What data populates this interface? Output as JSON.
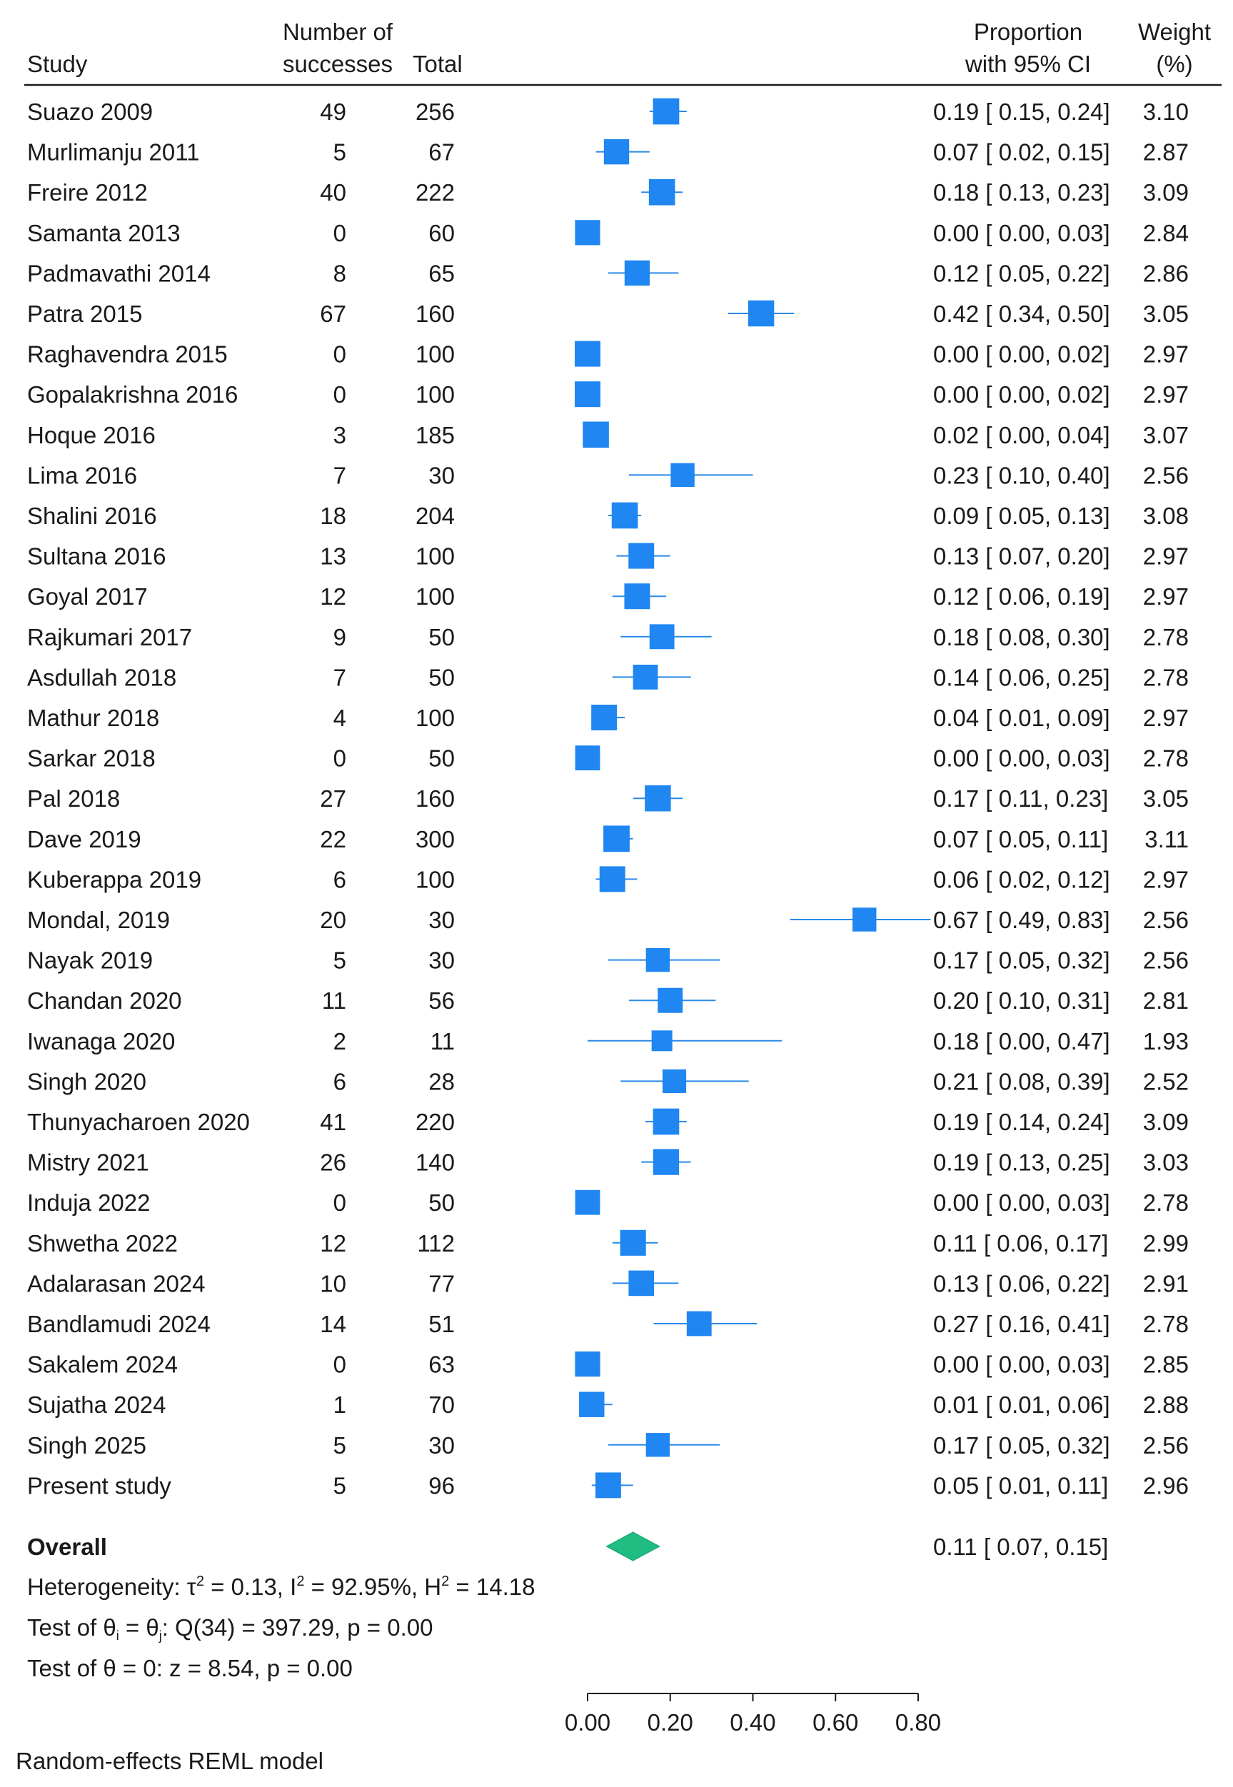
{
  "chart_data": {
    "type": "forest",
    "headers": {
      "study": "Study",
      "successes_line1": "Number of",
      "successes_line2": "successes",
      "total": "Total",
      "ci_line1": "Proportion",
      "ci_line2": "with 95% CI",
      "weight_line1": "Weight",
      "weight_line2": "(%)"
    },
    "studies": [
      {
        "name": "Suazo 2009",
        "successes": "49",
        "total": "256",
        "est": 0.19,
        "lo": 0.15,
        "hi": 0.24,
        "est_text": "0.19",
        "lo_text": "0.15",
        "hi_text": "0.24",
        "weight": 3.1,
        "weight_text": "3.10"
      },
      {
        "name": "Murlimanju 2011",
        "successes": "5",
        "total": "67",
        "est": 0.07,
        "lo": 0.02,
        "hi": 0.15,
        "est_text": "0.07",
        "lo_text": "0.02",
        "hi_text": "0.15",
        "weight": 2.87,
        "weight_text": "2.87"
      },
      {
        "name": "Freire 2012",
        "successes": "40",
        "total": "222",
        "est": 0.18,
        "lo": 0.13,
        "hi": 0.23,
        "est_text": "0.18",
        "lo_text": "0.13",
        "hi_text": "0.23",
        "weight": 3.09,
        "weight_text": "3.09"
      },
      {
        "name": "Samanta 2013",
        "successes": "0",
        "total": "60",
        "est": 0.0,
        "lo": 0.0,
        "hi": 0.03,
        "est_text": "0.00",
        "lo_text": "0.00",
        "hi_text": "0.03",
        "weight": 2.84,
        "weight_text": "2.84"
      },
      {
        "name": "Padmavathi 2014",
        "successes": "8",
        "total": "65",
        "est": 0.12,
        "lo": 0.05,
        "hi": 0.22,
        "est_text": "0.12",
        "lo_text": "0.05",
        "hi_text": "0.22",
        "weight": 2.86,
        "weight_text": "2.86"
      },
      {
        "name": "Patra 2015",
        "successes": "67",
        "total": "160",
        "est": 0.42,
        "lo": 0.34,
        "hi": 0.5,
        "est_text": "0.42",
        "lo_text": "0.34",
        "hi_text": "0.50",
        "weight": 3.05,
        "weight_text": "3.05"
      },
      {
        "name": "Raghavendra 2015",
        "successes": "0",
        "total": "100",
        "est": 0.0,
        "lo": 0.0,
        "hi": 0.02,
        "est_text": "0.00",
        "lo_text": "0.00",
        "hi_text": "0.02",
        "weight": 2.97,
        "weight_text": "2.97"
      },
      {
        "name": "Gopalakrishna 2016",
        "successes": "0",
        "total": "100",
        "est": 0.0,
        "lo": 0.0,
        "hi": 0.02,
        "est_text": "0.00",
        "lo_text": "0.00",
        "hi_text": "0.02",
        "weight": 2.97,
        "weight_text": "2.97"
      },
      {
        "name": "Hoque 2016",
        "successes": "3",
        "total": "185",
        "est": 0.02,
        "lo": 0.0,
        "hi": 0.04,
        "est_text": "0.02",
        "lo_text": "0.00",
        "hi_text": "0.04",
        "weight": 3.07,
        "weight_text": "3.07"
      },
      {
        "name": "Lima 2016",
        "successes": "7",
        "total": "30",
        "est": 0.23,
        "lo": 0.1,
        "hi": 0.4,
        "est_text": "0.23",
        "lo_text": "0.10",
        "hi_text": "0.40",
        "weight": 2.56,
        "weight_text": "2.56"
      },
      {
        "name": "Shalini 2016",
        "successes": "18",
        "total": "204",
        "est": 0.09,
        "lo": 0.05,
        "hi": 0.13,
        "est_text": "0.09",
        "lo_text": "0.05",
        "hi_text": "0.13",
        "weight": 3.08,
        "weight_text": "3.08"
      },
      {
        "name": "Sultana 2016",
        "successes": "13",
        "total": "100",
        "est": 0.13,
        "lo": 0.07,
        "hi": 0.2,
        "est_text": "0.13",
        "lo_text": "0.07",
        "hi_text": "0.20",
        "weight": 2.97,
        "weight_text": "2.97"
      },
      {
        "name": "Goyal 2017",
        "successes": "12",
        "total": "100",
        "est": 0.12,
        "lo": 0.06,
        "hi": 0.19,
        "est_text": "0.12",
        "lo_text": "0.06",
        "hi_text": "0.19",
        "weight": 2.97,
        "weight_text": "2.97"
      },
      {
        "name": "Rajkumari 2017",
        "successes": "9",
        "total": "50",
        "est": 0.18,
        "lo": 0.08,
        "hi": 0.3,
        "est_text": "0.18",
        "lo_text": "0.08",
        "hi_text": "0.30",
        "weight": 2.78,
        "weight_text": "2.78"
      },
      {
        "name": "Asdullah 2018",
        "successes": "7",
        "total": "50",
        "est": 0.14,
        "lo": 0.06,
        "hi": 0.25,
        "est_text": "0.14",
        "lo_text": "0.06",
        "hi_text": "0.25",
        "weight": 2.78,
        "weight_text": "2.78"
      },
      {
        "name": "Mathur 2018",
        "successes": "4",
        "total": "100",
        "est": 0.04,
        "lo": 0.01,
        "hi": 0.09,
        "est_text": "0.04",
        "lo_text": "0.01",
        "hi_text": "0.09",
        "weight": 2.97,
        "weight_text": "2.97"
      },
      {
        "name": "Sarkar 2018",
        "successes": "0",
        "total": "50",
        "est": 0.0,
        "lo": 0.0,
        "hi": 0.03,
        "est_text": "0.00",
        "lo_text": "0.00",
        "hi_text": "0.03",
        "weight": 2.78,
        "weight_text": "2.78"
      },
      {
        "name": "Pal 2018",
        "successes": "27",
        "total": "160",
        "est": 0.17,
        "lo": 0.11,
        "hi": 0.23,
        "est_text": "0.17",
        "lo_text": "0.11",
        "hi_text": "0.23",
        "weight": 3.05,
        "weight_text": "3.05"
      },
      {
        "name": "Dave 2019",
        "successes": "22",
        "total": "300",
        "est": 0.07,
        "lo": 0.05,
        "hi": 0.11,
        "est_text": "0.07",
        "lo_text": "0.05",
        "hi_text": "0.11",
        "weight": 3.11,
        "weight_text": "3.11"
      },
      {
        "name": "Kuberappa 2019",
        "successes": "6",
        "total": "100",
        "est": 0.06,
        "lo": 0.02,
        "hi": 0.12,
        "est_text": "0.06",
        "lo_text": "0.02",
        "hi_text": "0.12",
        "weight": 2.97,
        "weight_text": "2.97"
      },
      {
        "name": "Mondal, 2019",
        "successes": "20",
        "total": "30",
        "est": 0.67,
        "lo": 0.49,
        "hi": 0.83,
        "est_text": "0.67",
        "lo_text": "0.49",
        "hi_text": "0.83",
        "weight": 2.56,
        "weight_text": "2.56"
      },
      {
        "name": "Nayak 2019",
        "successes": "5",
        "total": "30",
        "est": 0.17,
        "lo": 0.05,
        "hi": 0.32,
        "est_text": "0.17",
        "lo_text": "0.05",
        "hi_text": "0.32",
        "weight": 2.56,
        "weight_text": "2.56"
      },
      {
        "name": "Chandan 2020",
        "successes": "11",
        "total": "56",
        "est": 0.2,
        "lo": 0.1,
        "hi": 0.31,
        "est_text": "0.20",
        "lo_text": "0.10",
        "hi_text": "0.31",
        "weight": 2.81,
        "weight_text": "2.81"
      },
      {
        "name": "Iwanaga 2020",
        "successes": "2",
        "total": "11",
        "est": 0.18,
        "lo": 0.0,
        "hi": 0.47,
        "est_text": "0.18",
        "lo_text": "0.00",
        "hi_text": "0.47",
        "weight": 1.93,
        "weight_text": "1.93"
      },
      {
        "name": "Singh 2020",
        "successes": "6",
        "total": "28",
        "est": 0.21,
        "lo": 0.08,
        "hi": 0.39,
        "est_text": "0.21",
        "lo_text": "0.08",
        "hi_text": "0.39",
        "weight": 2.52,
        "weight_text": "2.52"
      },
      {
        "name": "Thunyacharoen 2020",
        "successes": "41",
        "total": "220",
        "est": 0.19,
        "lo": 0.14,
        "hi": 0.24,
        "est_text": "0.19",
        "lo_text": "0.14",
        "hi_text": "0.24",
        "weight": 3.09,
        "weight_text": "3.09"
      },
      {
        "name": "Mistry 2021",
        "successes": "26",
        "total": "140",
        "est": 0.19,
        "lo": 0.13,
        "hi": 0.25,
        "est_text": "0.19",
        "lo_text": "0.13",
        "hi_text": "0.25",
        "weight": 3.03,
        "weight_text": "3.03"
      },
      {
        "name": "Induja 2022",
        "successes": "0",
        "total": "50",
        "est": 0.0,
        "lo": 0.0,
        "hi": 0.03,
        "est_text": "0.00",
        "lo_text": "0.00",
        "hi_text": "0.03",
        "weight": 2.78,
        "weight_text": "2.78"
      },
      {
        "name": "Shwetha 2022",
        "successes": "12",
        "total": "112",
        "est": 0.11,
        "lo": 0.06,
        "hi": 0.17,
        "est_text": "0.11",
        "lo_text": "0.06",
        "hi_text": "0.17",
        "weight": 2.99,
        "weight_text": "2.99"
      },
      {
        "name": "Adalarasan 2024",
        "successes": "10",
        "total": "77",
        "est": 0.13,
        "lo": 0.06,
        "hi": 0.22,
        "est_text": "0.13",
        "lo_text": "0.06",
        "hi_text": "0.22",
        "weight": 2.91,
        "weight_text": "2.91"
      },
      {
        "name": "Bandlamudi 2024",
        "successes": "14",
        "total": "51",
        "est": 0.27,
        "lo": 0.16,
        "hi": 0.41,
        "est_text": "0.27",
        "lo_text": "0.16",
        "hi_text": "0.41",
        "weight": 2.78,
        "weight_text": "2.78"
      },
      {
        "name": "Sakalem 2024",
        "successes": "0",
        "total": "63",
        "est": 0.0,
        "lo": 0.0,
        "hi": 0.03,
        "est_text": "0.00",
        "lo_text": "0.00",
        "hi_text": "0.03",
        "weight": 2.85,
        "weight_text": "2.85"
      },
      {
        "name": "Sujatha 2024",
        "successes": "1",
        "total": "70",
        "est": 0.01,
        "lo": 0.01,
        "hi": 0.06,
        "est_text": "0.01",
        "lo_text": "0.01",
        "hi_text": "0.06",
        "weight": 2.88,
        "weight_text": "2.88"
      },
      {
        "name": "Singh 2025",
        "successes": "5",
        "total": "30",
        "est": 0.17,
        "lo": 0.05,
        "hi": 0.32,
        "est_text": "0.17",
        "lo_text": "0.05",
        "hi_text": "0.32",
        "weight": 2.56,
        "weight_text": "2.56"
      },
      {
        "name": "Present study",
        "successes": "5",
        "total": "96",
        "est": 0.05,
        "lo": 0.01,
        "hi": 0.11,
        "est_text": "0.05",
        "lo_text": "0.01",
        "hi_text": "0.11",
        "weight": 2.96,
        "weight_text": "2.96"
      }
    ],
    "overall": {
      "label": "Overall",
      "est": 0.11,
      "lo": 0.07,
      "hi": 0.15,
      "est_text": "0.11",
      "lo_text": "0.07",
      "hi_text": "0.15"
    },
    "heterogeneity": {
      "label": "Heterogeneity: τ",
      "tau2_rest": " = 0.13, I",
      "i2_rest": " = 92.95%, H",
      "h2_rest": " = 14.18",
      "sup": "2"
    },
    "test_equal": {
      "prefix": "Test of θ",
      "sub_i": "i",
      "mid": " = θ",
      "sub_j": "j",
      "rest": ": Q(34) = 397.29, p = 0.00"
    },
    "test_zero": "Test of θ = 0: z = 8.54, p = 0.00",
    "xaxis": {
      "min": 0,
      "max": 0.8,
      "ticks": [
        0,
        0.2,
        0.4,
        0.6,
        0.8
      ],
      "tick_labels": [
        "0.00",
        "0.20",
        "0.40",
        "0.60",
        "0.80"
      ]
    },
    "footnote": "Random-effects REML model",
    "colors": {
      "square": "#1f86f2",
      "ci_line": "#2a8ae8",
      "diamond": "#1fbd82",
      "text": "#1a1a1a"
    }
  }
}
